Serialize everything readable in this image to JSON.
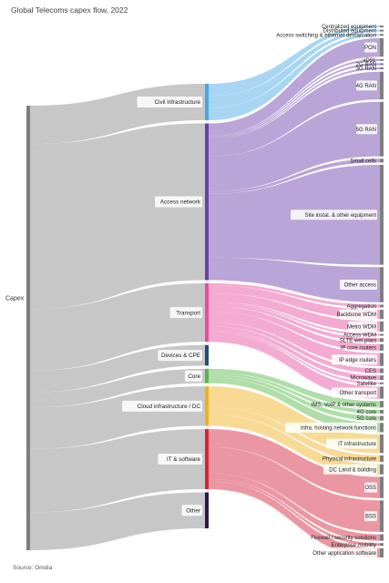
{
  "title": "Global Telecoms capex flow, 2022",
  "source": "Source: Omdia",
  "chart_data": {
    "type": "sankey",
    "title": "Global Telecoms capex flow, 2022",
    "root": "Capex",
    "units": "share of total capex (estimated from ribbon thickness)",
    "mid_nodes": [
      {
        "name": "Civil infrastructure",
        "value": 7.1,
        "color": "#45a8e3"
      },
      {
        "name": "Access network",
        "value": 30.5,
        "color": "#6a3fa9"
      },
      {
        "name": "Transport",
        "value": 11.4,
        "color": "#e84b9f"
      },
      {
        "name": "Devices & CPE",
        "value": 4.0,
        "color": "#1f4e79"
      },
      {
        "name": "Core",
        "value": 2.8,
        "color": "#54b848"
      },
      {
        "name": "Cloud infrastructure / DC",
        "value": 7.7,
        "color": "#f2b01e"
      },
      {
        "name": "IT & software",
        "value": 11.7,
        "color": "#d6213a"
      },
      {
        "name": "Other",
        "value": 7.0,
        "color": "#2b1650"
      }
    ],
    "leaf_nodes": [
      {
        "name": "Centralized equipment",
        "parent": "Civil infrastructure",
        "value": 0.2
      },
      {
        "name": "Distributed equipment",
        "parent": "Civil infrastructure",
        "value": 0.2
      },
      {
        "name": "Access switching & ethernet demarcation",
        "parent": "Civil infrastructure",
        "value": 0.2
      },
      {
        "name": "PON",
        "parent": "Access network",
        "value": 2.0
      },
      {
        "name": "xDSL",
        "parent": "Access network",
        "value": 0.2
      },
      {
        "name": "2G RAN",
        "parent": "Access network",
        "value": 0.2
      },
      {
        "name": "3G RAN",
        "parent": "Access network",
        "value": 0.2
      },
      {
        "name": "4G RAN",
        "parent": "Access network",
        "value": 3.0
      },
      {
        "name": "5G RAN",
        "parent": "Access network",
        "value": 5.9
      },
      {
        "name": "Small cells",
        "parent": "Access network",
        "value": 0.4
      },
      {
        "name": "Site instal. & other equipment",
        "parent": "Access network",
        "value": 10.8
      },
      {
        "name": "Other access",
        "parent": "Access network",
        "value": 3.8
      },
      {
        "name": "Aggregation",
        "parent": "Transport",
        "value": 0.3
      },
      {
        "name": "Backbone WDM",
        "parent": "Transport",
        "value": 1.0
      },
      {
        "name": "Metro WDM",
        "parent": "Transport",
        "value": 1.1
      },
      {
        "name": "Access WDM",
        "parent": "Transport",
        "value": 0.2
      },
      {
        "name": "SLTE wet plant",
        "parent": "Transport",
        "value": 0.4
      },
      {
        "name": "IP core routers",
        "parent": "Transport",
        "value": 0.7
      },
      {
        "name": "IP edge routers",
        "parent": "Transport",
        "value": 1.4
      },
      {
        "name": "CES",
        "parent": "Transport",
        "value": 0.5
      },
      {
        "name": "Microwave",
        "parent": "Transport",
        "value": 0.5
      },
      {
        "name": "Satellite",
        "parent": "Transport",
        "value": 0.2
      },
      {
        "name": "Other transport",
        "parent": "Transport",
        "value": 1.3
      },
      {
        "name": "IMS, VoIP & other systems",
        "parent": "Core",
        "value": 0.7
      },
      {
        "name": "4G core",
        "parent": "Core",
        "value": 0.4
      },
      {
        "name": "5G core",
        "parent": "Core",
        "value": 0.5
      },
      {
        "name": "Infra. hosting network functions",
        "parent": "Core",
        "value": 1.0
      },
      {
        "name": "IT infrastructure",
        "parent": "Cloud infrastructure / DC",
        "value": 2.0
      },
      {
        "name": "Physical infrastructure",
        "parent": "Cloud infrastructure / DC",
        "value": 0.7
      },
      {
        "name": "DC Land & building",
        "parent": "Cloud infrastructure / DC",
        "value": 1.1
      },
      {
        "name": "OSS",
        "parent": "IT & software",
        "value": 2.3
      },
      {
        "name": "BSS",
        "parent": "IT & software",
        "value": 3.4
      },
      {
        "name": "Firewall / security solutions",
        "parent": "IT & software",
        "value": 0.7
      },
      {
        "name": "Enterprise mobility",
        "parent": "IT & software",
        "value": 0.3
      },
      {
        "name": "Other application software",
        "parent": "IT & software",
        "value": 1.0
      }
    ]
  }
}
